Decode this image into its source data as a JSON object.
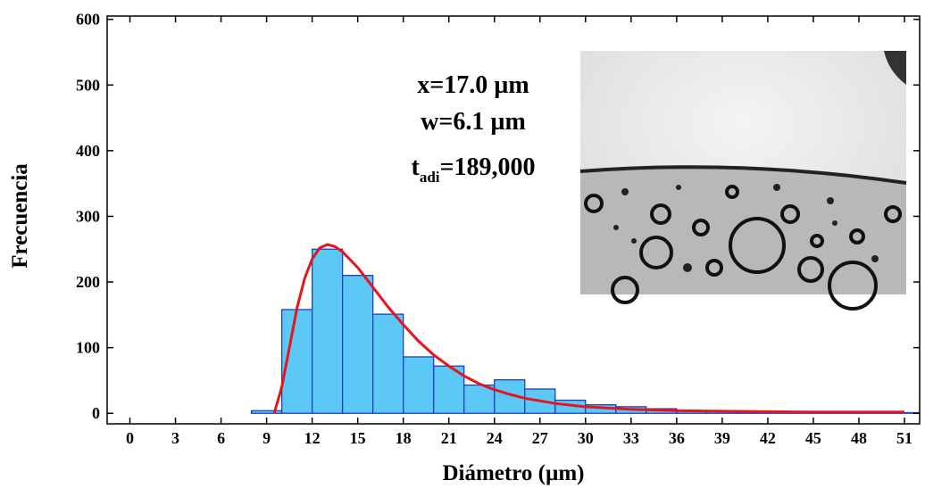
{
  "chart_data": {
    "type": "histogram",
    "xlabel": "Diámetro (µm)",
    "ylabel": "Frecuencia",
    "bins": [
      0,
      2,
      4,
      6,
      8,
      10,
      12,
      14,
      16,
      18,
      20,
      22,
      24,
      26,
      28,
      30,
      32,
      34,
      36,
      38,
      40,
      42,
      44,
      46,
      48,
      50,
      52
    ],
    "counts": [
      0,
      0,
      0,
      0,
      4,
      158,
      250,
      210,
      151,
      86,
      72,
      43,
      51,
      37,
      20,
      13,
      10,
      7,
      4,
      3,
      2,
      2,
      2,
      1,
      1,
      1
    ],
    "color": "#5bc8f5",
    "edgecolor": "#1f3fbf",
    "fit": {
      "color": "#e8141c",
      "x": [
        9.5,
        10,
        10.5,
        11,
        11.5,
        12,
        12.5,
        13,
        13.5,
        14,
        15,
        16,
        17,
        18,
        19,
        20,
        21,
        22,
        23,
        24,
        25,
        26,
        28,
        30,
        33,
        36,
        40,
        45,
        51
      ],
      "y": [
        0,
        40,
        100,
        160,
        205,
        235,
        252,
        257,
        254,
        246,
        222,
        192,
        162,
        135,
        110,
        89,
        72,
        57,
        45,
        36,
        29,
        23,
        15,
        10,
        6,
        4,
        3,
        2,
        2
      ]
    },
    "xlim": [
      -1.5,
      52
    ],
    "ylim": [
      -16,
      605
    ],
    "xticks": [
      0,
      3,
      6,
      9,
      12,
      15,
      18,
      21,
      24,
      27,
      30,
      33,
      36,
      39,
      42,
      45,
      48,
      51
    ],
    "yticks": [
      0,
      100,
      200,
      300,
      400,
      500,
      600
    ],
    "annotations": [
      "x=17.0 µm",
      "w=6.1 µm"
    ],
    "annotation_t": {
      "main": "t",
      "sub": "adi",
      "rest": "=189,000"
    }
  }
}
